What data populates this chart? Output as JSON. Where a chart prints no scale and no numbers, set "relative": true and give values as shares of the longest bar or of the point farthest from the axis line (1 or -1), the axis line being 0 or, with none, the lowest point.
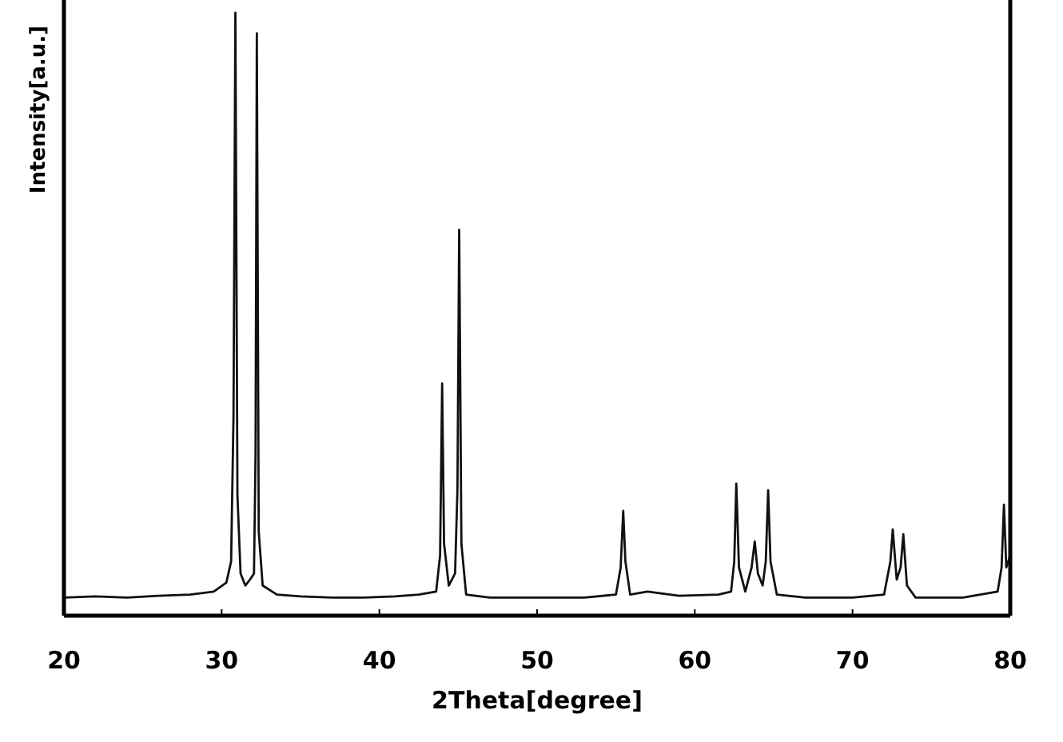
{
  "chart_data": {
    "type": "line",
    "xlabel": "2Theta[degree]",
    "ylabel": "Intensity[a.u.]",
    "relative": true,
    "xlim": [
      20,
      80
    ],
    "xticks": [
      20,
      30,
      40,
      50,
      60,
      70,
      80
    ],
    "grid": false,
    "line_style": "solid",
    "series": [
      {
        "color": "#111111",
        "x": [
          20,
          22,
          24,
          26,
          28,
          29.5,
          30.3,
          30.6,
          30.75,
          30.87,
          31.0,
          31.2,
          31.5,
          31.8,
          32.05,
          32.15,
          32.23,
          32.35,
          32.6,
          33.5,
          35,
          37,
          39,
          41,
          42.5,
          43.6,
          43.85,
          43.98,
          44.1,
          44.4,
          44.8,
          44.95,
          45.06,
          45.2,
          45.5,
          47,
          50,
          53,
          55.0,
          55.3,
          55.46,
          55.6,
          55.9,
          57,
          59,
          61.5,
          62.3,
          62.5,
          62.63,
          62.8,
          63.2,
          63.6,
          63.8,
          64.0,
          64.3,
          64.5,
          64.65,
          64.8,
          65.2,
          67,
          70,
          72.0,
          72.4,
          72.55,
          72.8,
          73.05,
          73.22,
          73.45,
          74,
          77,
          79.2,
          79.45,
          79.6,
          79.75,
          80
        ],
        "values": [
          0.03,
          0.032,
          0.03,
          0.033,
          0.035,
          0.04,
          0.055,
          0.09,
          0.33,
          1.0,
          0.2,
          0.07,
          0.05,
          0.06,
          0.07,
          0.27,
          0.966,
          0.14,
          0.05,
          0.035,
          0.032,
          0.03,
          0.03,
          0.032,
          0.035,
          0.04,
          0.1,
          0.385,
          0.12,
          0.05,
          0.07,
          0.21,
          0.64,
          0.12,
          0.035,
          0.03,
          0.03,
          0.03,
          0.035,
          0.08,
          0.174,
          0.09,
          0.035,
          0.04,
          0.033,
          0.035,
          0.04,
          0.09,
          0.219,
          0.08,
          0.04,
          0.08,
          0.123,
          0.07,
          0.05,
          0.09,
          0.208,
          0.09,
          0.035,
          0.03,
          0.03,
          0.035,
          0.09,
          0.143,
          0.06,
          0.08,
          0.135,
          0.05,
          0.03,
          0.03,
          0.04,
          0.08,
          0.184,
          0.08,
          0.1
        ]
      }
    ]
  }
}
